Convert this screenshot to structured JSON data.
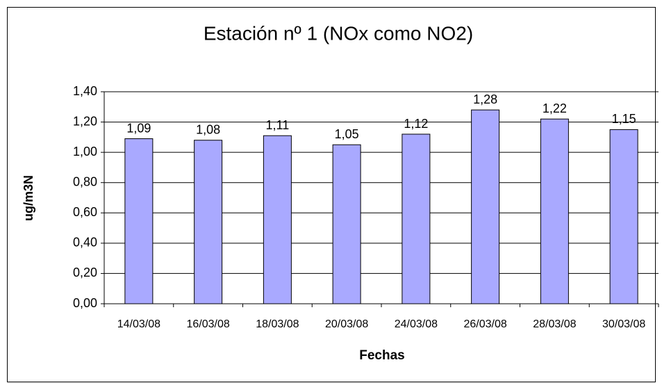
{
  "chart_data": {
    "type": "bar",
    "title": "Estación nº 1 (NOx como NO2)",
    "x_label": "Fechas",
    "y_label": "ug/m3N",
    "categories": [
      "14/03/08",
      "16/03/08",
      "18/03/08",
      "20/03/08",
      "24/03/08",
      "26/03/08",
      "28/03/08",
      "30/03/08"
    ],
    "values": [
      1.09,
      1.08,
      1.11,
      1.05,
      1.12,
      1.28,
      1.22,
      1.15
    ],
    "value_labels": [
      "1,09",
      "1,08",
      "1,11",
      "1,05",
      "1,12",
      "1,28",
      "1,22",
      "1,15"
    ],
    "color": "#a9a9ff",
    "ylim": [
      0,
      1.4
    ],
    "yticks": [
      {
        "value": 0,
        "label": "0,00"
      },
      {
        "value": 0.2,
        "label": "0,20"
      },
      {
        "value": 0.4,
        "label": "0,40"
      },
      {
        "value": 0.6,
        "label": "0,60"
      },
      {
        "value": 0.8,
        "label": "0,80"
      },
      {
        "value": 1.0,
        "label": "1,00"
      },
      {
        "value": 1.2,
        "label": "1,20"
      },
      {
        "value": 1.4,
        "label": "1,40"
      }
    ],
    "grid": true
  }
}
